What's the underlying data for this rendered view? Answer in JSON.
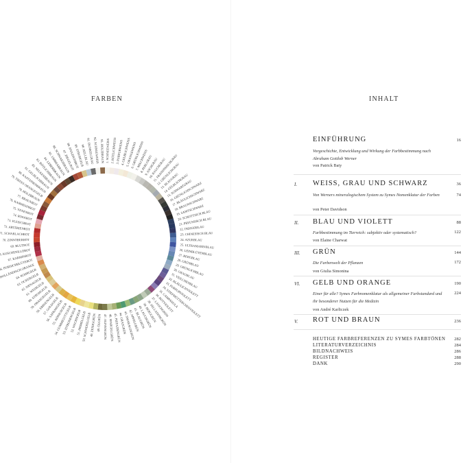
{
  "left_page": {
    "heading": "FARBEN"
  },
  "right_page": {
    "heading": "INHALT"
  },
  "wheel": {
    "labels": [
      "1. SCHNEEWEISS",
      "2. RÖTLICHWEISS",
      "3. PURPURWEISS",
      "4. GELBLICHWEISS",
      "5. ORANGEWEISS",
      "6. GRÜNLICHWEISS",
      "7. MILCHWEISS",
      "8. PERLGRAU",
      "9. ASCHGRAU",
      "10. RAUCHGRAU",
      "11. FRANZÖSISCHGRAU",
      "12. GRÜNLICHGRAU",
      "13. BLAUGRAU",
      "14. GELBLICHGRAU",
      "15. SCHWARZGRAU",
      "16. GRÜNLICHSCHWARZ",
      "17. BLÄULICHSCHWARZ",
      "18. BRAUNSCHWARZ",
      "19. SAMTSCHWARZ",
      "20. SCHOTTISCH BLAU",
      "21. PREUSSISCH BLAU",
      "22. INDIGOBLAU",
      "23. CHINESISCH BLAU",
      "24. AZURBLAU",
      "25. ULTRAMARINBLAU",
      "26. LEINBLÜTENBLAU",
      "27. BERGBLAU",
      "28. GRÜNBLAU",
      "29. GRÜNLICHBLAU",
      "30. GRAUBLAU",
      "31. VEILCHENBLAU",
      "32. BLÄULICHVIOLETT",
      "33. PURPURVIOLETT",
      "34. STIEFMÜTTERCHENVIOLETT",
      "35. CAMPANULA",
      "36. ROTVIOLETT",
      "37. LAUCHGRÜN",
      "38. SELLADONGRÜN",
      "39. BERGGRÜN",
      "40. LAUCHGRÜN",
      "41. BLAUGRÜN",
      "42. APFELGRÜN",
      "43. SMARAGDGRÜN",
      "44. GRASGRÜN",
      "45. PISTAZIENGRÜN",
      "46. SPARGELGRÜN",
      "47. OLIVENGRÜN",
      "48. ÖLGRÜN",
      "49. ZEISIGGRÜN",
      "50. SCHWEFELGELB",
      "51. PRIMELGELB",
      "52. WACHSGELB",
      "53. ZITRONENGELB",
      "54. GUMMIGUTTGELB",
      "55. KÖNIGSGELB",
      "56. SAFRANGELB",
      "57. GOLDGELB",
      "58. ERBSENGELB",
      "59. ORANGEGELB",
      "60. STROHGELB",
      "61. WEINGELB",
      "62. SIENAGELB",
      "63. OCKERGELB",
      "64. ROHRGELB",
      "65. HOLLÄNDISCH ORANGE",
      "66. PFIRSICHBLÜTEROT",
      "67. KARMINROT",
      "68. KOSCHENILLEROT",
      "69. BLUTROT",
      "70. ZINNOBERROT",
      "71. SCHARLACHROT",
      "72. ARTERIENROT",
      "73. FLEISCHROT",
      "74. ROSAROT",
      "75. VENENROT",
      "76. KARMESINROT",
      "77. BRAUNROT",
      "78. HOLZBRAUN",
      "79. TIEFES ORANGEGELB",
      "80. KASTANIENBRAUN",
      "81. GELBLICHBRAUN",
      "82. NELKENBRAUN",
      "83. RÖTLICHBRAUN",
      "84. LEBERBRAUN",
      "85. UMBRABRAUN",
      "86. SCHWARZBRAUN",
      "87. ZIEGELROT",
      "88. HYAZINTHROT",
      "89. STROHGELB",
      "90. HELLBLAU",
      "91. DUNKELGRAU",
      "92. SCHNEEWEISS",
      "93. HOLZBRAUN"
    ],
    "colors": [
      "#f6f5ef",
      "#f3ece4",
      "#efe9ec",
      "#f3efdc",
      "#f3e8d6",
      "#eef0e6",
      "#f2f1ea",
      "#d8d8d4",
      "#c9c9c5",
      "#b9b8b2",
      "#b6b4ab",
      "#b3b8ad",
      "#a5abb0",
      "#b9b39d",
      "#55534e",
      "#353a35",
      "#2b2e36",
      "#3a312d",
      "#222222",
      "#2c3d5e",
      "#27385e",
      "#2e3560",
      "#3e5c92",
      "#5d7fb7",
      "#3f55a0",
      "#7a92c4",
      "#6788b4",
      "#5d8a9a",
      "#8eaac5",
      "#9eadbf",
      "#5c5a92",
      "#6e5f9a",
      "#6b4a7a",
      "#5a4480",
      "#8a7cb3",
      "#8e4a78",
      "#9cab97",
      "#bfcab6",
      "#8ea58a",
      "#8aa678",
      "#6b9a84",
      "#9cbd78",
      "#4f9a72",
      "#6a9a55",
      "#a7b175",
      "#c0c796",
      "#7b7a4a",
      "#6e6a3a",
      "#b3b360",
      "#e8df7d",
      "#eee59c",
      "#e7d28a",
      "#efd95a",
      "#e6b53a",
      "#e9c25c",
      "#e3a642",
      "#dcb24a",
      "#d5c98e",
      "#e2a55e",
      "#dccc98",
      "#d8c27a",
      "#c08a4c",
      "#c79a52",
      "#d2b072",
      "#d98a4c",
      "#e3b2a4",
      "#b03048",
      "#9c2a3e",
      "#8e1e28",
      "#c6452e",
      "#c63a2e",
      "#b22a2a",
      "#e0a090",
      "#e4a6b2",
      "#7a2a30",
      "#a8243c",
      "#7a3a2c",
      "#8a5a3a",
      "#c77a3a",
      "#6e3a22",
      "#a0703e",
      "#6e4a3c",
      "#8a4a36",
      "#6a3a2a",
      "#5e4632",
      "#3a2a22",
      "#a44a38",
      "#b45a3a",
      "#d6c48c",
      "#bccbd8",
      "#6a6a6a",
      "#f4f3ee",
      "#8c6a4a"
    ]
  },
  "toc": {
    "intro": {
      "title": "EINFÜHRUNG",
      "page": "16",
      "sub": "Vorgeschichte, Entwicklung und Wirkung der Farbbestimmung nach Abraham Gottlob Werner",
      "author": "von Patrick Baty"
    },
    "sections": [
      {
        "num": "I.",
        "title": "WEISS, GRAU UND SCHWARZ",
        "page": "36",
        "sub": "Von Werners mineralogischem System zu Symes Nomenklatur der Farben",
        "sub_page": "74",
        "author": "von Peter Davidson"
      },
      {
        "num": "II.",
        "title": "BLAU UND VIOLETT",
        "page": "88",
        "sub": "Farbbestimmung im Tierreich: subjektiv oder systematisch?",
        "sub_page": "122",
        "author": "von Elaine Charwat"
      },
      {
        "num": "III.",
        "title": "GRÜN",
        "page": "144",
        "sub": "Die Farbenwelt der Pflanzen",
        "sub_page": "172",
        "author": "von Giulia Simonina"
      },
      {
        "num": "VI.",
        "title": "GELB UND ORANGE",
        "page": "190",
        "sub": "Einer für alle? Symes Farbnomenklatur als allgemeiner Farbstandard und ihr besonderer Nutzen für die Medizin",
        "sub_page": "224",
        "author": "von André Karliczek"
      },
      {
        "num": "V.",
        "title": "ROT UND BRAUN",
        "page": "236"
      }
    ],
    "appendix": [
      {
        "title": "HEUTIGE FARBREFERENZEN ZU SYMES FARBTÖNEN",
        "page": "282"
      },
      {
        "title": "LITERATURVERZEICHNIS",
        "page": "284"
      },
      {
        "title": "BILDNACHWEIS",
        "page": "286"
      },
      {
        "title": "REGISTER",
        "page": "288"
      },
      {
        "title": "DANK",
        "page": "290"
      }
    ]
  }
}
